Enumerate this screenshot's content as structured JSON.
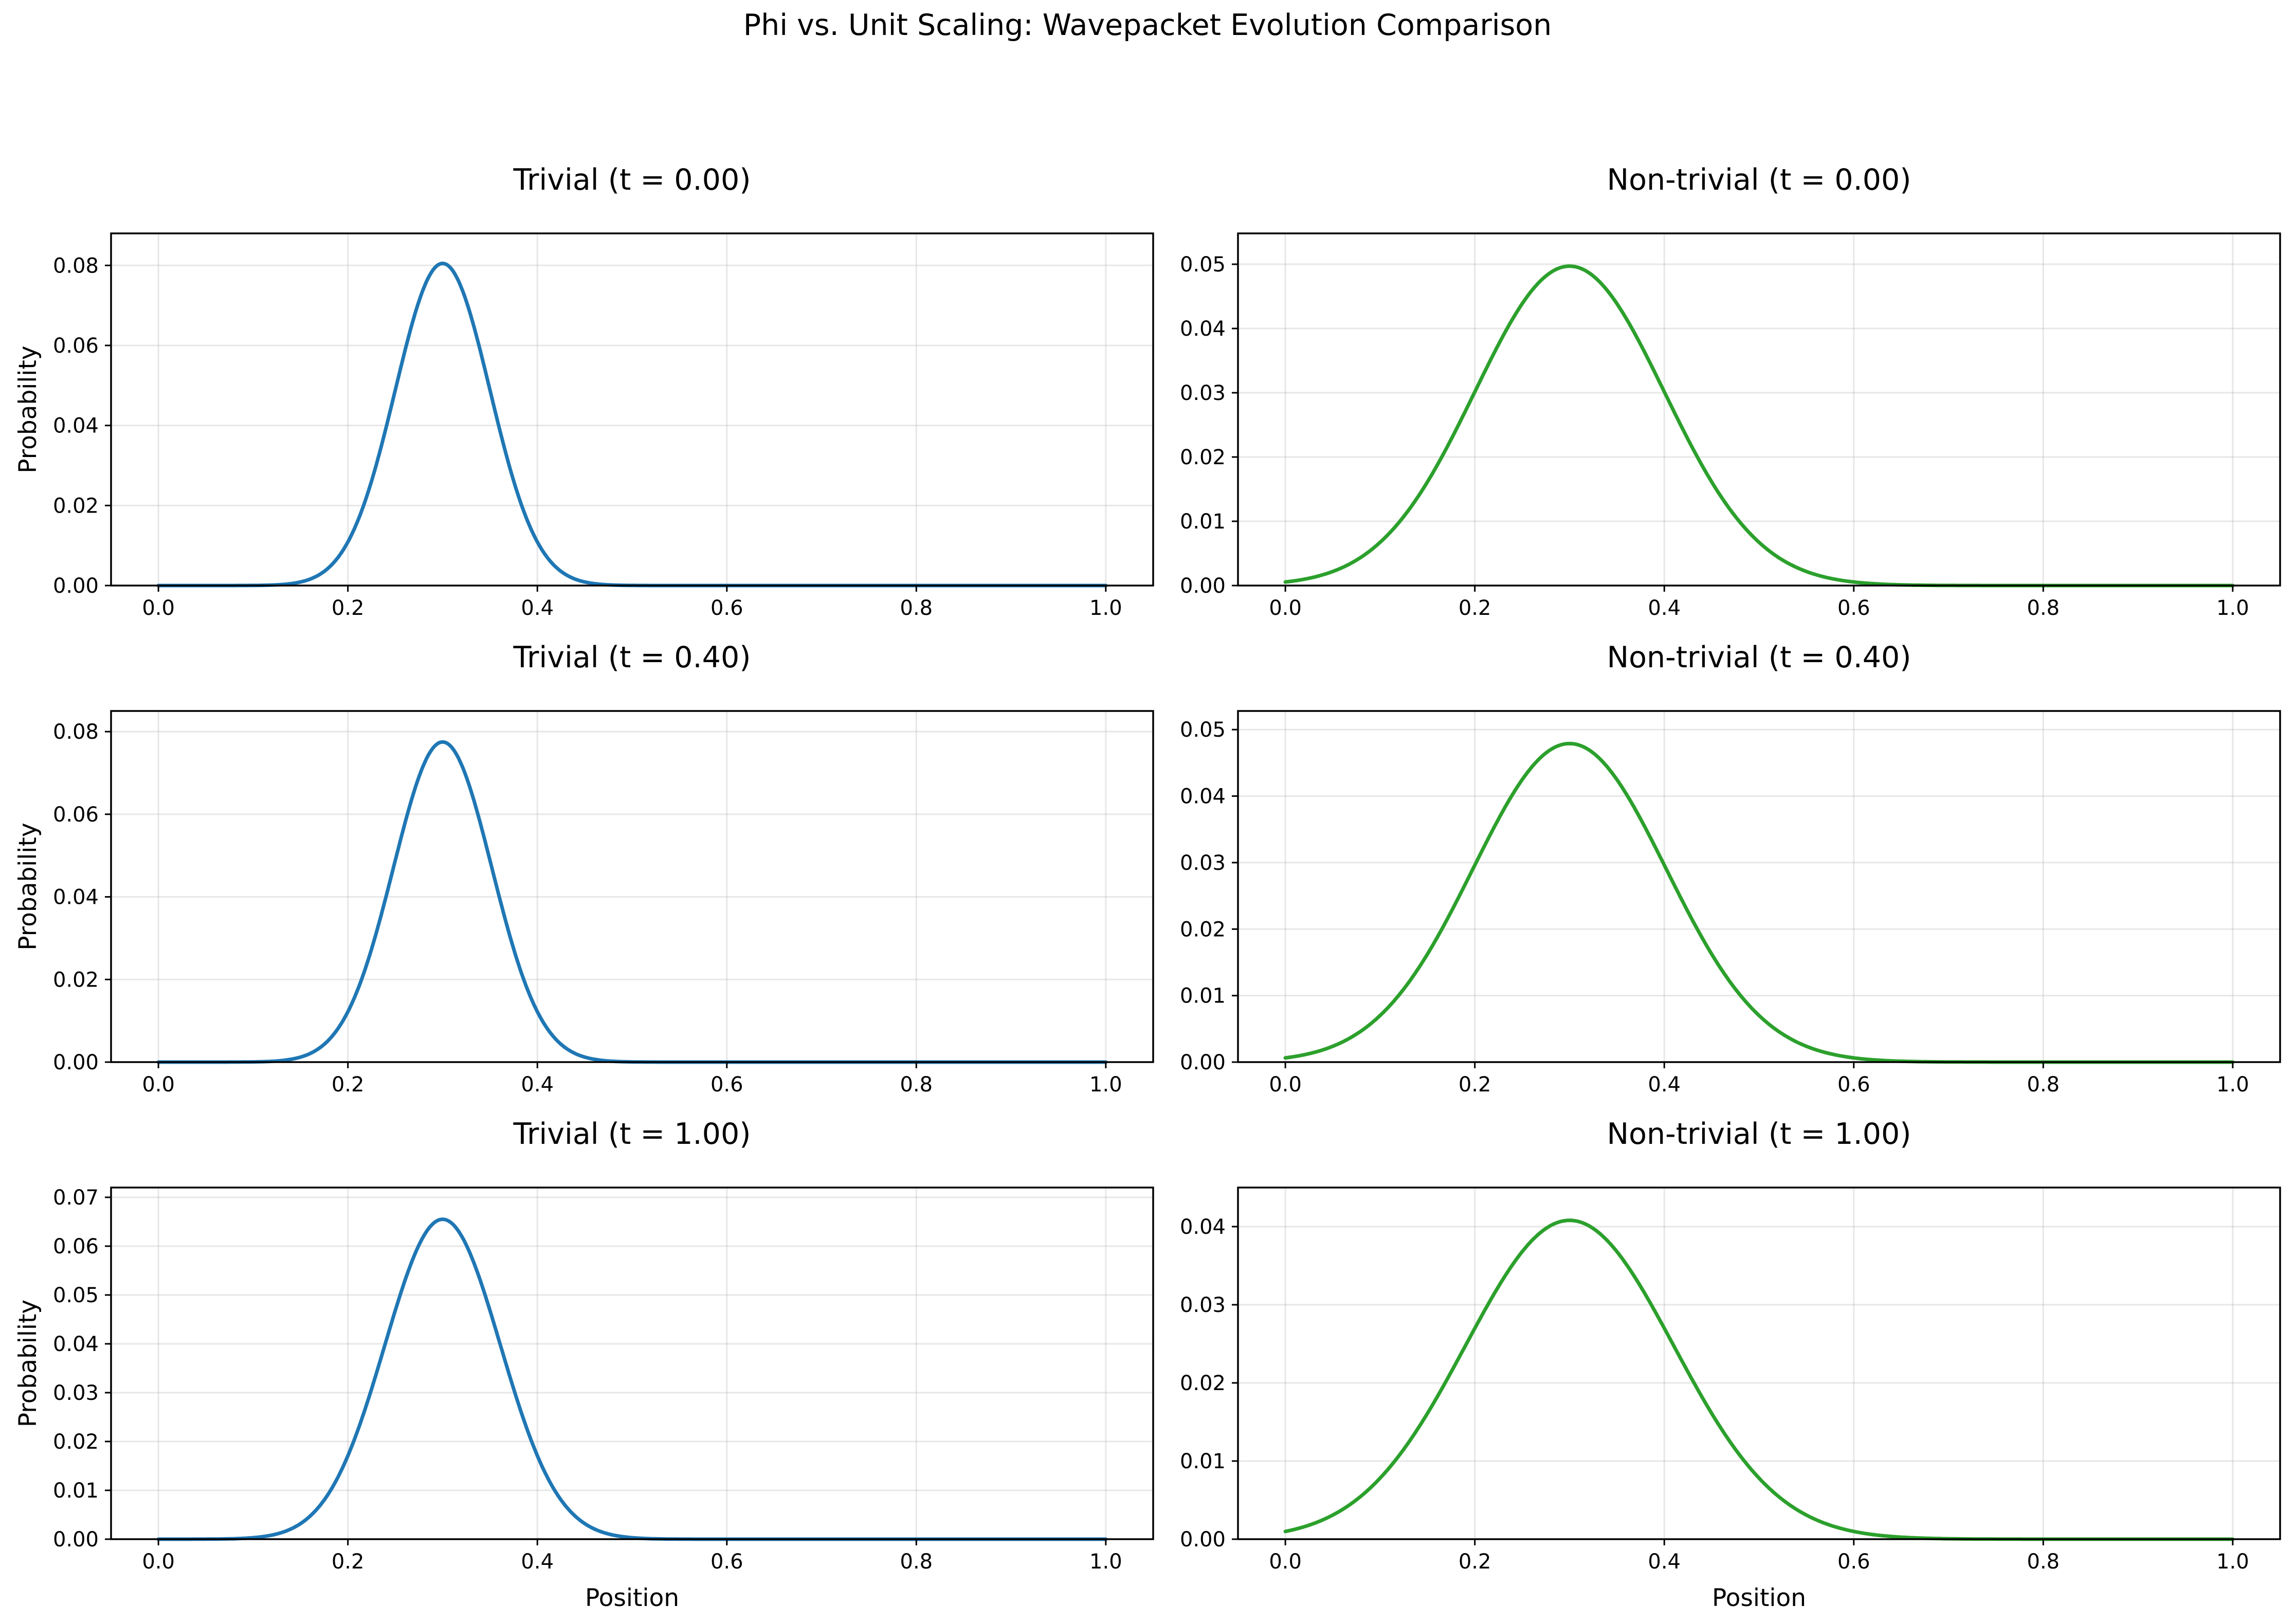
{
  "figure": {
    "suptitle": "Phi vs. Unit Scaling: Wavepacket Evolution Comparison",
    "colors": {
      "trivial": "#1f77b4",
      "nontrivial": "#2ca02c"
    }
  },
  "chart_data": [
    {
      "type": "line",
      "title": "Trivial (t = 0.00)",
      "xlabel": "",
      "ylabel": "Probability",
      "grid": true,
      "xlim": [
        -0.05,
        1.05
      ],
      "ylim": [
        0,
        0.088
      ],
      "xticks": [
        0.0,
        0.2,
        0.4,
        0.6,
        0.8,
        1.0
      ],
      "xtick_labels": [
        "0.0",
        "0.2",
        "0.4",
        "0.6",
        "0.8",
        "1.0"
      ],
      "yticks": [
        0,
        0.02,
        0.04,
        0.06,
        0.08
      ],
      "ytick_labels": [
        "0.00",
        "0.02",
        "0.04",
        "0.06",
        "0.08"
      ],
      "series": [
        {
          "color": "#1f77b4",
          "center": 0.3,
          "peak": 0.0805,
          "width": 0.05,
          "baseline": 0,
          "x": [
            0.0,
            0.1,
            0.15,
            0.2,
            0.25,
            0.3,
            0.35,
            0.4,
            0.45,
            0.5,
            0.6,
            0.8,
            1.0
          ],
          "y": [
            0.0,
            0.0011,
            0.0065,
            0.0218,
            0.0488,
            0.0805,
            0.0488,
            0.0218,
            0.0065,
            0.0011,
            0.0,
            0.0,
            0.0
          ]
        }
      ]
    },
    {
      "type": "line",
      "title": "Non-trivial (t = 0.00)",
      "xlabel": "",
      "ylabel": "",
      "grid": true,
      "xlim": [
        -0.05,
        1.05
      ],
      "ylim": [
        0,
        0.0548
      ],
      "xticks": [
        0.0,
        0.2,
        0.4,
        0.6,
        0.8,
        1.0
      ],
      "xtick_labels": [
        "0.0",
        "0.2",
        "0.4",
        "0.6",
        "0.8",
        "1.0"
      ],
      "yticks": [
        0,
        0.01,
        0.02,
        0.03,
        0.04,
        0.05
      ],
      "ytick_labels": [
        "0.00",
        "0.01",
        "0.02",
        "0.03",
        "0.04",
        "0.05"
      ],
      "series": [
        {
          "color": "#2ca02c",
          "center": 0.3,
          "peak": 0.0497,
          "width": 0.1,
          "baseline": 0,
          "x": [
            0.0,
            0.1,
            0.2,
            0.3,
            0.4,
            0.5,
            0.6,
            0.8,
            1.0
          ],
          "y": [
            0.0006,
            0.0067,
            0.0302,
            0.0497,
            0.0302,
            0.0067,
            0.0006,
            0.0,
            0.0
          ]
        }
      ]
    },
    {
      "type": "line",
      "title": "Trivial (t = 0.40)",
      "xlabel": "",
      "ylabel": "Probability",
      "grid": true,
      "xlim": [
        -0.05,
        1.05
      ],
      "ylim": [
        0,
        0.085
      ],
      "xticks": [
        0.0,
        0.2,
        0.4,
        0.6,
        0.8,
        1.0
      ],
      "xtick_labels": [
        "0.0",
        "0.2",
        "0.4",
        "0.6",
        "0.8",
        "1.0"
      ],
      "yticks": [
        0,
        0.02,
        0.04,
        0.06,
        0.08
      ],
      "ytick_labels": [
        "0.00",
        "0.02",
        "0.04",
        "0.06",
        "0.08"
      ],
      "series": [
        {
          "color": "#1f77b4",
          "center": 0.3,
          "peak": 0.0775,
          "width": 0.052,
          "baseline": 0,
          "x": [
            0.0,
            0.1,
            0.15,
            0.2,
            0.25,
            0.3,
            0.35,
            0.4,
            0.45,
            0.5,
            0.6,
            0.8,
            1.0
          ],
          "y": [
            0.0,
            0.0012,
            0.0071,
            0.0219,
            0.048,
            0.0775,
            0.048,
            0.0219,
            0.0071,
            0.0012,
            0.0,
            0.0,
            0.0
          ]
        }
      ]
    },
    {
      "type": "line",
      "title": "Non-trivial (t = 0.40)",
      "xlabel": "",
      "ylabel": "",
      "grid": true,
      "xlim": [
        -0.05,
        1.05
      ],
      "ylim": [
        0,
        0.0528
      ],
      "xticks": [
        0.0,
        0.2,
        0.4,
        0.6,
        0.8,
        1.0
      ],
      "xtick_labels": [
        "0.0",
        "0.2",
        "0.4",
        "0.6",
        "0.8",
        "1.0"
      ],
      "yticks": [
        0,
        0.01,
        0.02,
        0.03,
        0.04,
        0.05
      ],
      "ytick_labels": [
        "0.00",
        "0.01",
        "0.02",
        "0.03",
        "0.04",
        "0.05"
      ],
      "series": [
        {
          "color": "#2ca02c",
          "center": 0.3,
          "peak": 0.0479,
          "width": 0.102,
          "baseline": 0,
          "x": [
            0.0,
            0.1,
            0.2,
            0.3,
            0.4,
            0.5,
            0.6,
            0.8,
            1.0
          ],
          "y": [
            0.0006,
            0.007,
            0.0296,
            0.0479,
            0.0296,
            0.007,
            0.0006,
            0.0,
            0.0
          ]
        }
      ]
    },
    {
      "type": "line",
      "title": "Trivial (t = 1.00)",
      "xlabel": "Position",
      "ylabel": "Probability",
      "grid": true,
      "xlim": [
        -0.05,
        1.05
      ],
      "ylim": [
        0,
        0.072
      ],
      "xticks": [
        0.0,
        0.2,
        0.4,
        0.6,
        0.8,
        1.0
      ],
      "xtick_labels": [
        "0.0",
        "0.2",
        "0.4",
        "0.6",
        "0.8",
        "1.0"
      ],
      "yticks": [
        0,
        0.01,
        0.02,
        0.03,
        0.04,
        0.05,
        0.06,
        0.07
      ],
      "ytick_labels": [
        "0.00",
        "0.01",
        "0.02",
        "0.03",
        "0.04",
        "0.05",
        "0.06",
        "0.07"
      ],
      "series": [
        {
          "color": "#1f77b4",
          "center": 0.3,
          "peak": 0.0655,
          "width": 0.061,
          "baseline": 0,
          "x": [
            0.0,
            0.1,
            0.15,
            0.2,
            0.25,
            0.3,
            0.35,
            0.4,
            0.45,
            0.5,
            0.6,
            0.8,
            1.0
          ],
          "y": [
            0.0,
            0.0031,
            0.0115,
            0.0204,
            0.047,
            0.0655,
            0.047,
            0.0204,
            0.0115,
            0.0031,
            0.0,
            0.0,
            0.0
          ]
        }
      ]
    },
    {
      "type": "line",
      "title": "Non-trivial (t = 1.00)",
      "xlabel": "Position",
      "ylabel": "",
      "grid": true,
      "xlim": [
        -0.05,
        1.05
      ],
      "ylim": [
        0,
        0.045
      ],
      "xticks": [
        0.0,
        0.2,
        0.4,
        0.6,
        0.8,
        1.0
      ],
      "xtick_labels": [
        "0.0",
        "0.2",
        "0.4",
        "0.6",
        "0.8",
        "1.0"
      ],
      "yticks": [
        0,
        0.01,
        0.02,
        0.03,
        0.04
      ],
      "ytick_labels": [
        "0.00",
        "0.01",
        "0.02",
        "0.03",
        "0.04"
      ],
      "series": [
        {
          "color": "#2ca02c",
          "center": 0.3,
          "peak": 0.0408,
          "width": 0.11,
          "baseline": 0,
          "x": [
            0.0,
            0.1,
            0.2,
            0.3,
            0.4,
            0.5,
            0.6,
            0.8,
            1.0
          ],
          "y": [
            0.0005,
            0.0077,
            0.027,
            0.0408,
            0.027,
            0.0077,
            0.0007,
            0.0,
            0.0
          ]
        }
      ]
    }
  ]
}
